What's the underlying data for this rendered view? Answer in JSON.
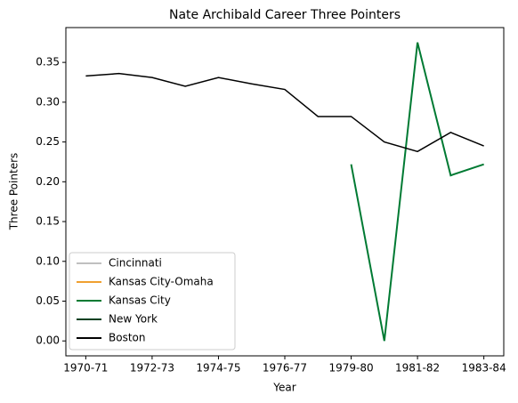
{
  "chart_data": {
    "type": "line",
    "title": "Nate Archibald Career Three Pointers",
    "xlabel": "Year",
    "ylabel": "Three Pointers",
    "categories": [
      "1970-71",
      null,
      "1972-73",
      null,
      "1974-75",
      null,
      "1976-77",
      null,
      "1979-80",
      null,
      "1981-82",
      null,
      "1983-84"
    ],
    "series": [
      {
        "name": "Cincinnati",
        "color": "#c0c0c0",
        "values": [
          null,
          null,
          null,
          null,
          null,
          null,
          null,
          null,
          null,
          null,
          null,
          null,
          null
        ]
      },
      {
        "name": "Kansas City-Omaha",
        "color": "#f0a030",
        "values": [
          null,
          null,
          null,
          null,
          null,
          null,
          null,
          null,
          null,
          null,
          null,
          null,
          null
        ]
      },
      {
        "name": "Kansas City",
        "color": "#007a33",
        "values": [
          null,
          null,
          null,
          null,
          null,
          null,
          null,
          null,
          0.222,
          0.0,
          0.375,
          0.208,
          0.222
        ]
      },
      {
        "name": "New York",
        "color": "#004020",
        "values": [
          null,
          null,
          null,
          null,
          null,
          null,
          null,
          null,
          null,
          null,
          null,
          null,
          null
        ]
      },
      {
        "name": "Boston",
        "color": "#000000",
        "values": [
          0.333,
          0.336,
          0.331,
          0.32,
          0.331,
          0.323,
          0.316,
          0.282,
          0.282,
          0.25,
          0.238,
          0.262,
          0.245
        ]
      }
    ],
    "ylim": [
      -0.01875,
      0.39375
    ],
    "yticks": [
      {
        "value": 0,
        "label": "0.00"
      },
      {
        "value": 0.05,
        "label": "0.05"
      },
      {
        "value": 0.1,
        "label": "0.10"
      },
      {
        "value": 0.15,
        "label": "0.15"
      },
      {
        "value": 0.2,
        "label": "0.20"
      },
      {
        "value": 0.25,
        "label": "0.25"
      },
      {
        "value": 0.3,
        "label": "0.30"
      },
      {
        "value": 0.35,
        "label": "0.35"
      }
    ],
    "legend": "lower left"
  }
}
